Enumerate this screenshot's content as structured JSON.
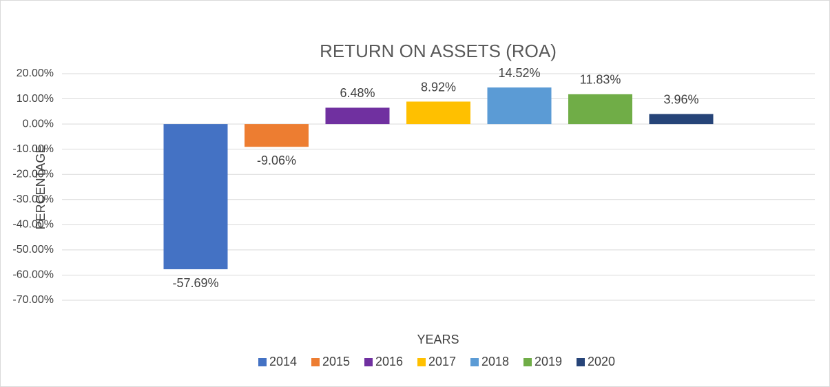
{
  "chart_data": {
    "type": "bar",
    "title": "RETURN ON ASSETS (ROA)",
    "y_label": "PERCENTAGE",
    "x_label": "YEARS",
    "categories": [
      null
    ],
    "series": [
      {
        "name": "2014",
        "color": "#4472c4",
        "values": [
          -57.69
        ],
        "value_labels": [
          "-57.69%"
        ]
      },
      {
        "name": "2015",
        "color": "#ed7d31",
        "values": [
          -9.06
        ],
        "value_labels": [
          "-9.06%"
        ]
      },
      {
        "name": "2016",
        "color": "#7030a0",
        "values": [
          6.48
        ],
        "value_labels": [
          "6.48%"
        ]
      },
      {
        "name": "2017",
        "color": "#ffc000",
        "values": [
          8.92
        ],
        "value_labels": [
          "8.92%"
        ]
      },
      {
        "name": "2018",
        "color": "#5b9bd5",
        "values": [
          14.52
        ],
        "value_labels": [
          "14.52%"
        ]
      },
      {
        "name": "2019",
        "color": "#70ad47",
        "values": [
          11.83
        ],
        "value_labels": [
          "11.83%"
        ]
      },
      {
        "name": "2020",
        "color": "#264478",
        "values": [
          3.96
        ],
        "value_labels": [
          "3.96%"
        ]
      }
    ],
    "ylim": [
      -70,
      20
    ],
    "yticks": [
      {
        "value": -70,
        "label": "-70.00%"
      },
      {
        "value": -60,
        "label": "-60.00%"
      },
      {
        "value": -50,
        "label": "-50.00%"
      },
      {
        "value": -40,
        "label": "-40.00%"
      },
      {
        "value": -30,
        "label": "-30.00%"
      },
      {
        "value": -20,
        "label": "-20.00%"
      },
      {
        "value": -10,
        "label": "-10.00%"
      },
      {
        "value": 0,
        "label": "0.00%"
      },
      {
        "value": 10,
        "label": "10.00%"
      },
      {
        "value": 20,
        "label": "20.00%"
      }
    ],
    "grid": true,
    "legend": "bottom"
  }
}
